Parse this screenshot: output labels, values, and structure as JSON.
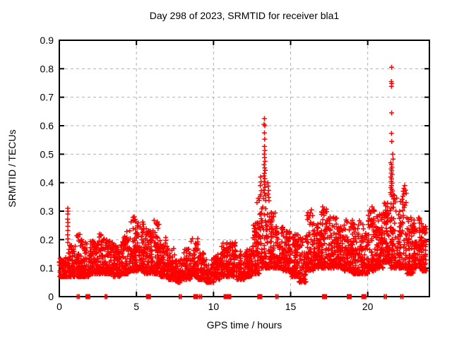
{
  "window": {
    "background": "#ffffff"
  },
  "chart_data": {
    "type": "scatter",
    "title": "Day 298 of 2023, SRMTID for receiver bla1",
    "xlabel": "GPS time / hours",
    "ylabel": "SRMTID / TECUs",
    "xlim": [
      0,
      24
    ],
    "ylim": [
      0,
      0.9
    ],
    "xticks": [
      {
        "v": 0,
        "label": "0"
      },
      {
        "v": 5,
        "label": "5"
      },
      {
        "v": 10,
        "label": "10"
      },
      {
        "v": 15,
        "label": "15"
      },
      {
        "v": 20,
        "label": "20"
      }
    ],
    "yticks": [
      {
        "v": 0.0,
        "label": "0"
      },
      {
        "v": 0.1,
        "label": "0.1"
      },
      {
        "v": 0.2,
        "label": "0.2"
      },
      {
        "v": 0.3,
        "label": "0.3"
      },
      {
        "v": 0.4,
        "label": "0.4"
      },
      {
        "v": 0.5,
        "label": "0.5"
      },
      {
        "v": 0.6,
        "label": "0.6"
      },
      {
        "v": 0.7,
        "label": "0.7"
      },
      {
        "v": 0.8,
        "label": "0.8"
      },
      {
        "v": 0.9,
        "label": "0.9"
      }
    ],
    "grid": {
      "show": true,
      "style": "dashed",
      "color": "#b0b0b0"
    },
    "legend": "none",
    "marker": {
      "glyph": "plus",
      "color": "#ff0000",
      "size": 7
    },
    "series": [
      {
        "name": "SRMTID",
        "band_bins": [
          [
            0.0,
            0.5,
            0.07,
            0.14,
            55
          ],
          [
            0.5,
            1.0,
            0.07,
            0.18,
            65
          ],
          [
            1.0,
            1.5,
            0.07,
            0.22,
            70
          ],
          [
            1.5,
            2.0,
            0.07,
            0.19,
            70
          ],
          [
            2.0,
            2.5,
            0.08,
            0.2,
            70
          ],
          [
            2.5,
            3.0,
            0.08,
            0.23,
            70
          ],
          [
            3.0,
            3.5,
            0.08,
            0.2,
            70
          ],
          [
            3.5,
            4.0,
            0.07,
            0.18,
            70
          ],
          [
            4.0,
            4.5,
            0.08,
            0.23,
            70
          ],
          [
            4.5,
            5.0,
            0.09,
            0.29,
            75
          ],
          [
            5.0,
            5.5,
            0.09,
            0.27,
            75
          ],
          [
            5.5,
            6.0,
            0.08,
            0.25,
            70
          ],
          [
            6.0,
            6.5,
            0.08,
            0.27,
            72
          ],
          [
            6.5,
            7.0,
            0.07,
            0.21,
            68
          ],
          [
            7.0,
            7.5,
            0.06,
            0.17,
            65
          ],
          [
            7.5,
            8.0,
            0.05,
            0.14,
            60
          ],
          [
            8.0,
            8.5,
            0.06,
            0.17,
            65
          ],
          [
            8.5,
            9.0,
            0.07,
            0.21,
            68
          ],
          [
            9.0,
            9.5,
            0.06,
            0.16,
            62
          ],
          [
            9.5,
            10.0,
            0.05,
            0.13,
            60
          ],
          [
            10.0,
            10.5,
            0.06,
            0.15,
            62
          ],
          [
            10.5,
            11.0,
            0.07,
            0.19,
            65
          ],
          [
            11.0,
            11.5,
            0.07,
            0.19,
            65
          ],
          [
            11.5,
            12.0,
            0.06,
            0.16,
            65
          ],
          [
            12.0,
            12.5,
            0.07,
            0.17,
            65
          ],
          [
            12.5,
            13.0,
            0.08,
            0.26,
            70
          ],
          [
            13.0,
            13.5,
            0.1,
            0.33,
            72
          ],
          [
            13.5,
            14.0,
            0.1,
            0.3,
            72
          ],
          [
            14.0,
            14.5,
            0.1,
            0.25,
            70
          ],
          [
            14.5,
            15.0,
            0.09,
            0.23,
            70
          ],
          [
            15.0,
            15.5,
            0.07,
            0.22,
            70
          ],
          [
            15.5,
            16.0,
            0.05,
            0.21,
            68
          ],
          [
            16.0,
            16.5,
            0.09,
            0.3,
            72
          ],
          [
            16.5,
            17.0,
            0.1,
            0.26,
            70
          ],
          [
            17.0,
            17.5,
            0.1,
            0.31,
            72
          ],
          [
            17.5,
            18.0,
            0.1,
            0.28,
            72
          ],
          [
            18.0,
            18.5,
            0.1,
            0.26,
            72
          ],
          [
            18.5,
            19.0,
            0.09,
            0.27,
            72
          ],
          [
            19.0,
            19.5,
            0.08,
            0.27,
            70
          ],
          [
            19.5,
            20.0,
            0.08,
            0.26,
            70
          ],
          [
            20.0,
            20.5,
            0.09,
            0.31,
            72
          ],
          [
            20.5,
            21.0,
            0.1,
            0.29,
            72
          ],
          [
            21.0,
            21.5,
            0.12,
            0.33,
            72
          ],
          [
            21.5,
            22.0,
            0.1,
            0.36,
            75
          ],
          [
            22.0,
            22.5,
            0.1,
            0.35,
            75
          ],
          [
            22.5,
            23.0,
            0.08,
            0.28,
            72
          ],
          [
            23.0,
            23.5,
            0.1,
            0.3,
            70
          ],
          [
            23.5,
            23.8,
            0.09,
            0.25,
            45
          ]
        ],
        "outliers": [
          [
            0.55,
            0.31
          ],
          [
            0.56,
            0.3
          ],
          [
            0.55,
            0.29
          ],
          [
            0.54,
            0.272
          ],
          [
            0.56,
            0.26
          ],
          [
            0.55,
            0.247
          ],
          [
            0.55,
            0.232
          ],
          [
            0.54,
            0.217
          ],
          [
            0.56,
            0.203
          ],
          [
            0.55,
            0.19
          ],
          [
            12.82,
            0.33
          ],
          [
            12.9,
            0.345
          ],
          [
            12.97,
            0.338
          ],
          [
            13.02,
            0.352
          ],
          [
            13.05,
            0.42
          ],
          [
            13.08,
            0.403
          ],
          [
            13.03,
            0.39
          ],
          [
            13.1,
            0.372
          ],
          [
            13.06,
            0.358
          ],
          [
            13.3,
            0.625
          ],
          [
            13.28,
            0.605
          ],
          [
            13.33,
            0.6
          ],
          [
            13.3,
            0.575
          ],
          [
            13.32,
            0.553
          ],
          [
            13.3,
            0.527
          ],
          [
            13.33,
            0.513
          ],
          [
            13.29,
            0.5
          ],
          [
            13.31,
            0.488
          ],
          [
            13.34,
            0.475
          ],
          [
            13.28,
            0.463
          ],
          [
            13.32,
            0.452
          ],
          [
            13.35,
            0.443
          ],
          [
            13.3,
            0.433
          ],
          [
            13.27,
            0.424
          ],
          [
            13.33,
            0.414
          ],
          [
            13.29,
            0.404
          ],
          [
            13.31,
            0.394
          ],
          [
            13.34,
            0.384
          ],
          [
            13.26,
            0.374
          ],
          [
            13.3,
            0.364
          ],
          [
            13.36,
            0.354
          ],
          [
            13.24,
            0.344
          ],
          [
            13.38,
            0.338
          ],
          [
            13.52,
            0.4
          ],
          [
            13.55,
            0.388
          ],
          [
            13.57,
            0.373
          ],
          [
            13.53,
            0.36
          ],
          [
            13.58,
            0.348
          ],
          [
            13.6,
            0.337
          ],
          [
            16.35,
            0.305
          ],
          [
            17.08,
            0.315
          ],
          [
            17.15,
            0.303
          ],
          [
            20.28,
            0.315
          ],
          [
            20.33,
            0.302
          ],
          [
            21.55,
            0.805
          ],
          [
            21.53,
            0.755
          ],
          [
            21.56,
            0.748
          ],
          [
            21.54,
            0.738
          ],
          [
            21.55,
            0.645
          ],
          [
            21.54,
            0.573
          ],
          [
            21.56,
            0.545
          ],
          [
            21.5,
            0.47
          ],
          [
            21.54,
            0.463
          ],
          [
            21.57,
            0.455
          ],
          [
            21.52,
            0.448
          ],
          [
            21.56,
            0.442
          ],
          [
            21.53,
            0.434
          ],
          [
            21.58,
            0.428
          ],
          [
            21.5,
            0.42
          ],
          [
            21.55,
            0.413
          ],
          [
            21.52,
            0.405
          ],
          [
            21.57,
            0.398
          ],
          [
            21.54,
            0.39
          ],
          [
            21.5,
            0.383
          ],
          [
            21.56,
            0.377
          ],
          [
            21.6,
            0.371
          ],
          [
            21.48,
            0.365
          ],
          [
            21.52,
            0.358
          ],
          [
            21.58,
            0.352
          ],
          [
            21.62,
            0.5
          ],
          [
            21.64,
            0.483
          ],
          [
            22.3,
            0.37
          ],
          [
            22.35,
            0.38
          ],
          [
            22.4,
            0.39
          ],
          [
            22.45,
            0.374
          ],
          [
            22.35,
            0.36
          ],
          [
            22.5,
            0.363
          ],
          [
            22.28,
            0.352
          ]
        ]
      },
      {
        "name": "zero-line flags",
        "y": 0,
        "markers": [
          {
            "x": 1.17,
            "w": 2
          },
          {
            "x": 1.28,
            "w": 2
          },
          {
            "x": 1.85,
            "w": 7
          },
          {
            "x": 2.98,
            "w": 2
          },
          {
            "x": 3.08,
            "w": 2
          },
          {
            "x": 5.78,
            "w": 7
          },
          {
            "x": 7.78,
            "w": 2
          },
          {
            "x": 7.9,
            "w": 2
          },
          {
            "x": 8.85,
            "w": 7
          },
          {
            "x": 9.1,
            "w": 2
          },
          {
            "x": 9.22,
            "w": 2
          },
          {
            "x": 10.9,
            "w": 11
          },
          {
            "x": 13.0,
            "w": 7
          },
          {
            "x": 14.05,
            "w": 2
          },
          {
            "x": 14.17,
            "w": 2
          },
          {
            "x": 17.2,
            "w": 7
          },
          {
            "x": 18.8,
            "w": 7
          },
          {
            "x": 19.75,
            "w": 7
          },
          {
            "x": 21.08,
            "w": 2
          },
          {
            "x": 21.2,
            "w": 2
          },
          {
            "x": 22.15,
            "w": 2
          },
          {
            "x": 22.28,
            "w": 2
          }
        ]
      }
    ],
    "render_hints": {
      "seed": 298298,
      "gamma": 2.0,
      "streak_prob": 0.06,
      "streak_max": 4
    }
  }
}
